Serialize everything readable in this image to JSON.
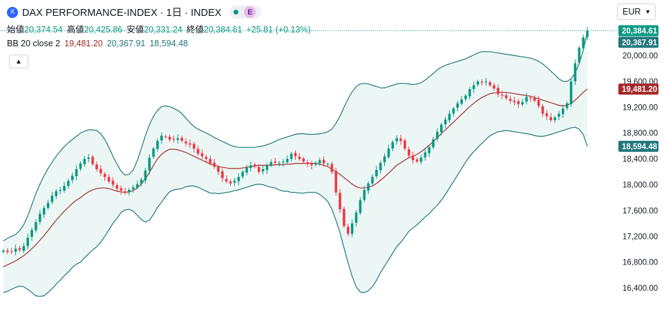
{
  "header": {
    "logo_glyph": "X",
    "title": "DAX PERFORMANCE-INDEX · 1日 · INDEX",
    "badge_letter": "E"
  },
  "ohlc": {
    "open_label": "始値",
    "open": "20,374.54",
    "high_label": "高値",
    "high": "20,425.86",
    "low_label": "安値",
    "low": "20,331.24",
    "close_label": "終値",
    "close": "20,384.61",
    "change": "+25.81 (+0.13%)"
  },
  "indicator": {
    "label": "BB 20 close 2",
    "middle": "19,481.20",
    "upper": "20,367.91",
    "lower": "18,594.48"
  },
  "collapse_icon": "chevron-up-icon",
  "currency": {
    "label": "EUR",
    "icon": "chevron-down-icon"
  },
  "colors": {
    "up": "#089981",
    "down": "#f23645",
    "basis": "#a52a2a",
    "band": "#22777a",
    "band_fill": "#e6f4f1",
    "price_line": "#089981"
  },
  "chart_data": {
    "type": "candlestick",
    "indicator": "Bollinger Bands (20, close, 2)",
    "y_ticks": [
      "20,000.00",
      "19,600.00",
      "19,200.00",
      "18,800.00",
      "18,400.00",
      "18,000.00",
      "17,600.00",
      "17,200.00",
      "16,800.00",
      "16,400.00"
    ],
    "ylim": [
      16300,
      20550
    ],
    "grid": false,
    "last_price": 20384.61,
    "last_price_label": "20,384.61",
    "upper_label": "20,367.91",
    "middle_label": "19,481.20",
    "lower_label": "18,594.48",
    "close": [
      16980,
      16960,
      16970,
      17010,
      16990,
      17050,
      17180,
      17300,
      17420,
      17550,
      17640,
      17720,
      17830,
      17900,
      17920,
      17980,
      18060,
      18140,
      18240,
      18330,
      18400,
      18420,
      18320,
      18240,
      18180,
      18120,
      18050,
      18000,
      17940,
      17910,
      17880,
      17920,
      17960,
      18010,
      18080,
      18220,
      18420,
      18560,
      18680,
      18760,
      18740,
      18700,
      18700,
      18720,
      18680,
      18640,
      18620,
      18560,
      18480,
      18440,
      18400,
      18330,
      18280,
      18200,
      18100,
      18050,
      18020,
      18060,
      18120,
      18200,
      18260,
      18300,
      18280,
      18200,
      18240,
      18300,
      18350,
      18340,
      18340,
      18360,
      18400,
      18480,
      18440,
      18400,
      18360,
      18320,
      18300,
      18340,
      18380,
      18330,
      18320,
      18200,
      17880,
      17620,
      17360,
      17240,
      17400,
      17570,
      17760,
      17920,
      18020,
      18120,
      18230,
      18340,
      18440,
      18560,
      18660,
      18720,
      18680,
      18560,
      18450,
      18380,
      18360,
      18420,
      18500,
      18580,
      18700,
      18820,
      18930,
      19010,
      19100,
      19180,
      19260,
      19320,
      19380,
      19480,
      19540,
      19600,
      19580,
      19600,
      19540,
      19490,
      19400,
      19380,
      19340,
      19300,
      19280,
      19250,
      19280,
      19360,
      19340,
      19300,
      19220,
      19100,
      19060,
      19000,
      19040,
      19100,
      19180,
      19260,
      19600,
      19880,
      20120,
      20280,
      20384.61
    ],
    "basis": [
      16730,
      16760,
      16790,
      16820,
      16860,
      16900,
      16950,
      17010,
      17070,
      17140,
      17210,
      17290,
      17370,
      17450,
      17520,
      17590,
      17650,
      17710,
      17760,
      17800,
      17850,
      17890,
      17920,
      17940,
      17950,
      17950,
      17940,
      17920,
      17900,
      17890,
      17880,
      17890,
      17910,
      17950,
      18010,
      18090,
      18190,
      18300,
      18400,
      18470,
      18520,
      18550,
      18550,
      18540,
      18520,
      18500,
      18470,
      18440,
      18410,
      18380,
      18350,
      18320,
      18300,
      18280,
      18270,
      18260,
      18250,
      18250,
      18250,
      18260,
      18270,
      18280,
      18290,
      18300,
      18300,
      18300,
      18300,
      18310,
      18310,
      18310,
      18320,
      18320,
      18330,
      18330,
      18330,
      18330,
      18330,
      18330,
      18320,
      18300,
      18280,
      18240,
      18200,
      18160,
      18110,
      18060,
      18010,
      17970,
      17950,
      17950,
      17960,
      17980,
      18020,
      18070,
      18120,
      18180,
      18240,
      18300,
      18340,
      18380,
      18420,
      18440,
      18470,
      18510,
      18560,
      18610,
      18670,
      18730,
      18790,
      18850,
      18910,
      18970,
      19030,
      19090,
      19150,
      19210,
      19260,
      19310,
      19350,
      19380,
      19410,
      19420,
      19430,
      19430,
      19430,
      19420,
      19410,
      19400,
      19390,
      19380,
      19370,
      19350,
      19330,
      19310,
      19290,
      19270,
      19250,
      19230,
      19220,
      19230,
      19260,
      19310,
      19370,
      19430,
      19481.2
    ],
    "upper": [
      17130,
      17170,
      17200,
      17230,
      17290,
      17380,
      17520,
      17690,
      17860,
      18010,
      18140,
      18250,
      18350,
      18440,
      18520,
      18590,
      18650,
      18700,
      18750,
      18800,
      18830,
      18850,
      18850,
      18840,
      18790,
      18700,
      18580,
      18440,
      18320,
      18210,
      18150,
      18160,
      18230,
      18370,
      18560,
      18760,
      18930,
      19060,
      19150,
      19210,
      19220,
      19210,
      19180,
      19150,
      19100,
      19030,
      18960,
      18900,
      18860,
      18830,
      18800,
      18770,
      18730,
      18700,
      18670,
      18640,
      18610,
      18590,
      18580,
      18580,
      18580,
      18580,
      18580,
      18590,
      18600,
      18620,
      18640,
      18670,
      18700,
      18720,
      18740,
      18760,
      18780,
      18790,
      18790,
      18780,
      18780,
      18780,
      18790,
      18800,
      18820,
      18860,
      18950,
      19060,
      19200,
      19330,
      19440,
      19520,
      19560,
      19570,
      19560,
      19540,
      19520,
      19500,
      19500,
      19520,
      19540,
      19560,
      19570,
      19570,
      19560,
      19550,
      19560,
      19580,
      19620,
      19670,
      19720,
      19780,
      19820,
      19850,
      19870,
      19890,
      19910,
      19930,
      19950,
      19980,
      20010,
      20040,
      20060,
      20060,
      20060,
      20050,
      20040,
      20030,
      20020,
      20010,
      20000,
      19990,
      19980,
      19970,
      19960,
      19940,
      19910,
      19870,
      19820,
      19760,
      19700,
      19640,
      19600,
      19600,
      19640,
      19730,
      19880,
      20080,
      20367.91
    ],
    "lower": [
      16330,
      16350,
      16380,
      16410,
      16430,
      16420,
      16380,
      16330,
      16280,
      16270,
      16280,
      16330,
      16390,
      16460,
      16520,
      16590,
      16650,
      16720,
      16770,
      16800,
      16870,
      16930,
      16990,
      17040,
      17110,
      17200,
      17300,
      17400,
      17480,
      17570,
      17610,
      17620,
      17590,
      17530,
      17460,
      17420,
      17450,
      17540,
      17650,
      17730,
      17820,
      17890,
      17920,
      17930,
      17940,
      17970,
      17980,
      17980,
      17960,
      17930,
      17900,
      17870,
      17870,
      17860,
      17870,
      17880,
      17890,
      17910,
      17920,
      17940,
      17960,
      17980,
      18000,
      18010,
      18000,
      17980,
      17960,
      17950,
      17920,
      17900,
      17900,
      17880,
      17880,
      17870,
      17870,
      17880,
      17880,
      17880,
      17850,
      17800,
      17740,
      17620,
      17450,
      17260,
      17020,
      16790,
      16580,
      16420,
      16340,
      16330,
      16360,
      16420,
      16520,
      16640,
      16740,
      16840,
      16940,
      17040,
      17110,
      17190,
      17280,
      17330,
      17380,
      17440,
      17500,
      17550,
      17620,
      17680,
      17760,
      17850,
      17950,
      18050,
      18150,
      18250,
      18350,
      18440,
      18510,
      18580,
      18640,
      18700,
      18760,
      18790,
      18820,
      18830,
      18840,
      18830,
      18820,
      18810,
      18800,
      18790,
      18780,
      18760,
      18750,
      18750,
      18760,
      18780,
      18800,
      18820,
      18840,
      18860,
      18880,
      18890,
      18860,
      18780,
      18594.48
    ]
  }
}
